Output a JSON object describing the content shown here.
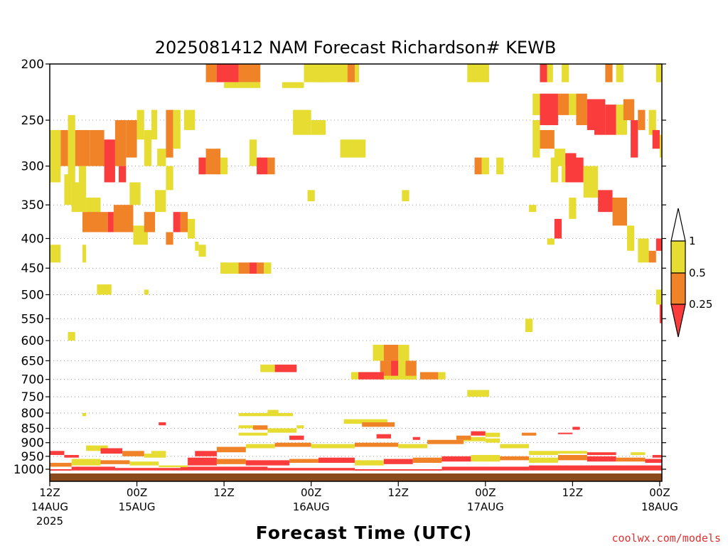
{
  "chart_data": {
    "type": "heatmap",
    "title": "2025081412 NAM Forecast Richardson# KEWB",
    "xlabel": "Forecast Time (UTC)",
    "ylabel": "",
    "credit": "coolwx.com/models",
    "y_axis": {
      "scale": "log",
      "reversed": true,
      "ticks": [
        "200",
        "250",
        "300",
        "350",
        "400",
        "450",
        "500",
        "550",
        "600",
        "650",
        "700",
        "750",
        "800",
        "850",
        "900",
        "950",
        "1000"
      ]
    },
    "x_axis": {
      "ticks": [
        {
          "hour": 0,
          "top": "12Z",
          "mid": "14AUG",
          "bottom": "2025"
        },
        {
          "hour": 12,
          "top": "00Z",
          "mid": "15AUG",
          "bottom": ""
        },
        {
          "hour": 24,
          "top": "12Z",
          "mid": "",
          "bottom": ""
        },
        {
          "hour": 36,
          "top": "00Z",
          "mid": "16AUG",
          "bottom": ""
        },
        {
          "hour": 48,
          "top": "12Z",
          "mid": "",
          "bottom": ""
        },
        {
          "hour": 60,
          "top": "00Z",
          "mid": "17AUG",
          "bottom": ""
        },
        {
          "hour": 72,
          "top": "12Z",
          "mid": "",
          "bottom": ""
        },
        {
          "hour": 84,
          "top": "00Z",
          "mid": "18AUG",
          "bottom": ""
        }
      ]
    },
    "legend": {
      "placement": "right",
      "labels": [
        "1",
        "0.5",
        "0.25"
      ],
      "colors": {
        "le_1": "#e6dc32",
        "le_0_5": "#f08228",
        "le_0_25": "#fa3c3c"
      }
    },
    "ground_color": "#8b4a1c",
    "cells": [
      [
        21.5,
        23,
        200,
        215,
        2
      ],
      [
        23,
        26,
        200,
        215,
        3
      ],
      [
        26,
        29,
        200,
        215,
        2
      ],
      [
        24,
        29,
        215,
        220,
        1
      ],
      [
        35,
        37,
        200,
        215,
        1
      ],
      [
        37,
        38.5,
        200,
        215,
        2
      ],
      [
        32,
        35,
        215,
        220,
        1
      ],
      [
        36.5,
        41,
        200,
        215,
        1
      ],
      [
        41,
        42,
        200,
        215,
        2
      ],
      [
        42,
        42.6,
        200,
        215,
        1
      ],
      [
        57.5,
        60.5,
        200,
        215,
        1
      ],
      [
        67.5,
        68.5,
        200,
        215,
        3
      ],
      [
        68.5,
        69.3,
        200,
        215,
        1
      ],
      [
        70.5,
        71.5,
        200,
        215,
        1
      ],
      [
        76.5,
        77.5,
        200,
        215,
        2
      ],
      [
        78,
        79,
        200,
        215,
        1
      ],
      [
        83.5,
        84.3,
        200,
        215,
        1
      ],
      [
        66.5,
        67.5,
        225,
        245,
        1
      ],
      [
        67.5,
        70,
        225,
        255,
        3
      ],
      [
        70,
        71.5,
        225,
        245,
        2
      ],
      [
        71.5,
        72.5,
        225,
        245,
        1
      ],
      [
        72.5,
        74,
        225,
        255,
        2
      ],
      [
        74,
        75,
        230,
        260,
        3
      ],
      [
        75,
        76.5,
        230,
        265,
        3
      ],
      [
        76.5,
        78,
        235,
        265,
        3
      ],
      [
        78,
        79.5,
        235,
        265,
        1
      ],
      [
        79,
        80.5,
        230,
        250,
        2
      ],
      [
        80,
        81,
        250,
        290,
        3
      ],
      [
        81,
        82,
        240,
        260,
        2
      ],
      [
        82.5,
        83.5,
        240,
        265,
        1
      ],
      [
        83,
        84,
        260,
        280,
        3
      ],
      [
        84,
        84.3,
        265,
        290,
        1
      ],
      [
        67.5,
        69.5,
        260,
        280,
        2
      ],
      [
        69.5,
        71,
        280,
        300,
        1
      ],
      [
        71,
        72.5,
        285,
        320,
        3
      ],
      [
        72.5,
        73.5,
        290,
        320,
        3
      ],
      [
        73.5,
        75.5,
        300,
        340,
        1
      ],
      [
        75.5,
        77.5,
        330,
        360,
        3
      ],
      [
        77.5,
        79.5,
        340,
        380,
        2
      ],
      [
        79.5,
        80.5,
        380,
        420,
        1
      ],
      [
        81,
        82.5,
        400,
        440,
        1
      ],
      [
        82.5,
        83.5,
        420,
        440,
        2
      ],
      [
        66,
        67,
        350,
        360,
        1
      ],
      [
        69.5,
        70.5,
        370,
        400,
        3
      ],
      [
        68.5,
        69.5,
        400,
        410,
        1
      ],
      [
        66.5,
        67.5,
        250,
        290,
        1
      ],
      [
        69,
        70,
        290,
        320,
        1
      ],
      [
        70.5,
        71,
        300,
        320,
        1
      ],
      [
        71.5,
        72.5,
        340,
        370,
        1
      ],
      [
        83.5,
        84.3,
        400,
        420,
        3
      ],
      [
        83.5,
        84.3,
        490,
        520,
        1
      ],
      [
        84,
        84.3,
        520,
        560,
        3
      ],
      [
        65.5,
        66.5,
        550,
        580,
        1
      ],
      [
        0,
        1.5,
        260,
        320,
        1
      ],
      [
        1.5,
        2.5,
        260,
        300,
        2
      ],
      [
        2.5,
        3.5,
        245,
        320,
        1
      ],
      [
        3.5,
        5.5,
        260,
        300,
        2
      ],
      [
        5.5,
        7.5,
        260,
        300,
        2
      ],
      [
        7.5,
        9,
        270,
        320,
        3
      ],
      [
        9,
        10.5,
        250,
        300,
        2
      ],
      [
        10.5,
        12,
        250,
        290,
        2
      ],
      [
        12,
        13,
        240,
        270,
        1
      ],
      [
        13,
        14,
        260,
        300,
        1
      ],
      [
        14,
        14.8,
        240,
        270,
        1
      ],
      [
        14.8,
        16,
        280,
        300,
        1
      ],
      [
        16,
        17,
        240,
        290,
        2
      ],
      [
        17,
        18,
        240,
        280,
        1
      ],
      [
        18.5,
        20,
        240,
        260,
        1
      ],
      [
        4,
        5,
        300,
        320,
        1
      ],
      [
        2,
        3,
        310,
        350,
        1
      ],
      [
        3,
        5,
        320,
        360,
        1
      ],
      [
        5,
        7,
        340,
        380,
        1
      ],
      [
        4.5,
        8,
        360,
        390,
        2
      ],
      [
        8,
        8.8,
        360,
        390,
        3
      ],
      [
        8.8,
        11.5,
        350,
        390,
        2
      ],
      [
        11,
        12.5,
        320,
        350,
        1
      ],
      [
        9.5,
        10.5,
        300,
        320,
        3
      ],
      [
        11.5,
        13.5,
        380,
        410,
        1
      ],
      [
        13,
        14.5,
        360,
        390,
        2
      ],
      [
        14.5,
        16,
        330,
        360,
        1
      ],
      [
        16,
        17,
        300,
        330,
        1
      ],
      [
        17,
        18,
        360,
        390,
        3
      ],
      [
        18,
        19,
        360,
        390,
        2
      ],
      [
        19,
        20,
        370,
        400,
        1
      ],
      [
        20,
        20.5,
        405,
        420,
        1
      ],
      [
        16,
        17,
        390,
        410,
        2
      ],
      [
        0,
        1.5,
        410,
        440,
        1
      ],
      [
        4.5,
        5,
        410,
        440,
        1
      ],
      [
        6.5,
        8.5,
        480,
        500,
        1
      ],
      [
        13,
        13.6,
        490,
        500,
        1
      ],
      [
        2.5,
        3.5,
        580,
        600,
        1
      ],
      [
        4.5,
        5,
        800,
        810,
        1
      ],
      [
        15,
        16,
        830,
        840,
        3
      ],
      [
        20.5,
        21.5,
        410,
        430,
        1
      ],
      [
        23.5,
        26,
        440,
        460,
        1
      ],
      [
        26,
        27.5,
        440,
        460,
        2
      ],
      [
        27.5,
        28.5,
        440,
        460,
        3
      ],
      [
        28.5,
        29.5,
        440,
        460,
        2
      ],
      [
        29.5,
        30.5,
        440,
        460,
        1
      ],
      [
        20.5,
        21.5,
        290,
        310,
        3
      ],
      [
        21.5,
        23.5,
        280,
        310,
        2
      ],
      [
        23.5,
        24.5,
        290,
        310,
        1
      ],
      [
        27.5,
        28.5,
        270,
        300,
        1
      ],
      [
        28.5,
        30,
        290,
        310,
        3
      ],
      [
        30,
        31,
        290,
        310,
        2
      ],
      [
        33.5,
        36,
        240,
        265,
        1
      ],
      [
        36,
        38,
        250,
        265,
        1
      ],
      [
        40,
        43.5,
        270,
        290,
        1
      ],
      [
        35.5,
        36.5,
        330,
        345,
        1
      ],
      [
        48.5,
        49.5,
        330,
        345,
        1
      ],
      [
        58.5,
        59.5,
        290,
        310,
        2
      ],
      [
        59.5,
        60.5,
        290,
        310,
        1
      ],
      [
        61.5,
        62.5,
        290,
        310,
        1
      ],
      [
        44.5,
        46,
        610,
        650,
        1
      ],
      [
        46,
        48,
        610,
        650,
        2
      ],
      [
        48,
        49.5,
        610,
        650,
        1
      ],
      [
        45.5,
        47,
        650,
        700,
        2
      ],
      [
        47,
        48,
        650,
        700,
        3
      ],
      [
        48,
        49,
        650,
        700,
        1
      ],
      [
        49,
        50.5,
        650,
        700,
        2
      ],
      [
        41.5,
        42.5,
        680,
        700,
        1
      ],
      [
        42.5,
        46,
        680,
        700,
        3
      ],
      [
        46,
        50.5,
        690,
        700,
        1
      ],
      [
        51,
        53.5,
        680,
        700,
        2
      ],
      [
        53.5,
        54.5,
        680,
        700,
        1
      ],
      [
        29,
        31,
        660,
        680,
        1
      ],
      [
        31,
        34,
        660,
        680,
        3
      ],
      [
        57.5,
        60.5,
        730,
        750,
        1
      ],
      [
        26,
        33.5,
        800,
        810,
        1
      ],
      [
        30,
        31.5,
        790,
        800,
        1
      ],
      [
        40.5,
        46.5,
        820,
        835,
        1
      ],
      [
        43,
        47.5,
        830,
        845,
        2
      ],
      [
        26,
        28,
        840,
        850,
        1
      ],
      [
        28,
        30,
        840,
        855,
        2
      ],
      [
        30,
        34,
        850,
        865,
        1
      ],
      [
        34,
        35,
        840,
        850,
        1
      ]
    ],
    "low_rows": [
      [
        0,
        3,
        1000,
        1005,
        3
      ],
      [
        3,
        9,
        990,
        1005,
        3
      ],
      [
        9,
        18,
        995,
        1005,
        3
      ],
      [
        18,
        30,
        990,
        1005,
        3
      ],
      [
        30,
        42,
        995,
        1005,
        3
      ],
      [
        42,
        54,
        1000,
        1005,
        3
      ],
      [
        54,
        66,
        990,
        1005,
        3
      ],
      [
        66,
        84.3,
        985,
        1005,
        3
      ],
      [
        0,
        3,
        975,
        990,
        2
      ],
      [
        3,
        7,
        960,
        985,
        1
      ],
      [
        7,
        11,
        965,
        980,
        2
      ],
      [
        11,
        15,
        970,
        985,
        1
      ],
      [
        15,
        19,
        985,
        992,
        1
      ],
      [
        19,
        23,
        955,
        985,
        3
      ],
      [
        23,
        27,
        960,
        980,
        2
      ],
      [
        27,
        33,
        965,
        985,
        3
      ],
      [
        33,
        37,
        960,
        975,
        2
      ],
      [
        37,
        42,
        955,
        975,
        3
      ],
      [
        42,
        46,
        965,
        985,
        1
      ],
      [
        46,
        50,
        960,
        980,
        3
      ],
      [
        50,
        54,
        955,
        975,
        2
      ],
      [
        54,
        58,
        950,
        970,
        3
      ],
      [
        58,
        62,
        945,
        970,
        1
      ],
      [
        62,
        66,
        950,
        965,
        2
      ],
      [
        66,
        70,
        955,
        975,
        1
      ],
      [
        70,
        74,
        945,
        965,
        2
      ],
      [
        74,
        78,
        950,
        970,
        3
      ],
      [
        78,
        82,
        955,
        970,
        2
      ],
      [
        82,
        84.3,
        960,
        975,
        3
      ],
      [
        5,
        8,
        910,
        930,
        1
      ],
      [
        7,
        10,
        920,
        940,
        3
      ],
      [
        10,
        13,
        930,
        950,
        2
      ],
      [
        13,
        16,
        940,
        955,
        1
      ],
      [
        20,
        23,
        930,
        950,
        3
      ],
      [
        23,
        27,
        915,
        935,
        2
      ],
      [
        27,
        31,
        905,
        920,
        1
      ],
      [
        31,
        36,
        900,
        915,
        2
      ],
      [
        36,
        42,
        905,
        920,
        1
      ],
      [
        42,
        48,
        900,
        915,
        2
      ],
      [
        48,
        52,
        905,
        920,
        1
      ],
      [
        52,
        57,
        890,
        905,
        2
      ],
      [
        57,
        60,
        880,
        895,
        1
      ],
      [
        60,
        62,
        885,
        900,
        1
      ],
      [
        62,
        66,
        905,
        920,
        1
      ],
      [
        66,
        70,
        930,
        945,
        1
      ],
      [
        70,
        74,
        930,
        940,
        1
      ],
      [
        74,
        78,
        935,
        945,
        3
      ],
      [
        80,
        82,
        935,
        945,
        1
      ],
      [
        83,
        84.3,
        945,
        955,
        3
      ],
      [
        0,
        2,
        930,
        945,
        3
      ],
      [
        2,
        4,
        945,
        955,
        3
      ],
      [
        14,
        16,
        930,
        940,
        1
      ],
      [
        26,
        30,
        865,
        875,
        1
      ],
      [
        33,
        35,
        875,
        890,
        3
      ],
      [
        45,
        47,
        870,
        885,
        3
      ],
      [
        50,
        51,
        880,
        890,
        3
      ],
      [
        56,
        58,
        875,
        890,
        2
      ],
      [
        58,
        60,
        860,
        875,
        3
      ],
      [
        60,
        62,
        865,
        880,
        1
      ],
      [
        65,
        67,
        865,
        875,
        2
      ],
      [
        70,
        72,
        865,
        870,
        3
      ],
      [
        72,
        73,
        845,
        855,
        3
      ]
    ]
  }
}
